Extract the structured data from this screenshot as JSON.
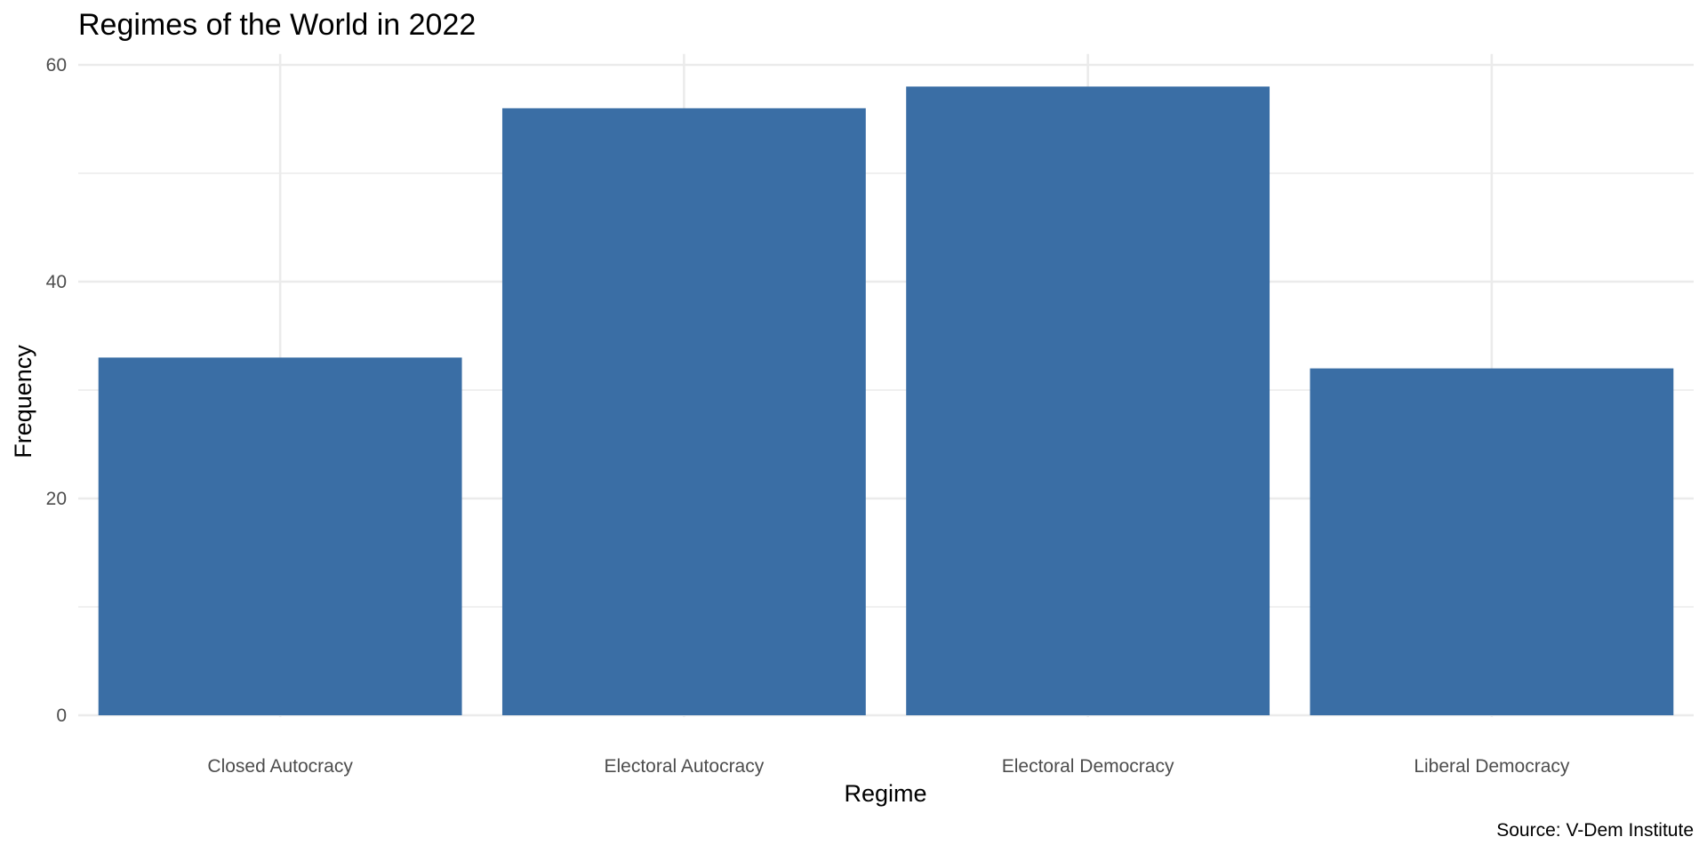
{
  "chart_data": {
    "type": "bar",
    "title": "Regimes of the World in 2022",
    "xlabel": "Regime",
    "ylabel": "Frequency",
    "caption": "Source: V-Dem Institute",
    "categories": [
      "Closed Autocracy",
      "Electoral Autocracy",
      "Electoral Democracy",
      "Liberal Democracy"
    ],
    "values": [
      33,
      56,
      58,
      32
    ],
    "ylim": [
      0,
      61
    ],
    "yticks": [
      0,
      20,
      40,
      60
    ],
    "grid": true,
    "legend": "none",
    "bar_color": "#3a6ea5",
    "grid_color": "#ebebeb"
  }
}
